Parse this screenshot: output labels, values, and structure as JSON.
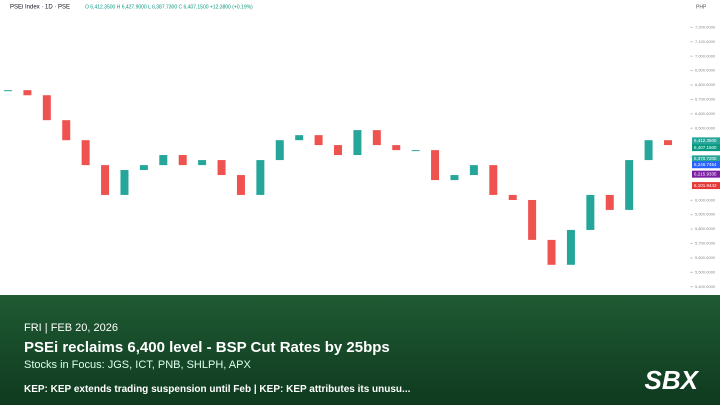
{
  "header": {
    "symbol": "PSEi Index · 1D · PSE",
    "ohlc": "O 6,412.3500  H 6,427.9000  L 6,387.7300  C 6,407.1500  +12.3800 (+0.19%)",
    "currency": "PHP"
  },
  "chart_data": {
    "type": "candlestick",
    "values": [
      6764,
      6729,
      6556,
      6417,
      6244,
      6037,
      6210,
      6244,
      6314,
      6244,
      6279,
      6175,
      6037,
      6279,
      6417,
      6452,
      6383,
      6314,
      6487,
      6383,
      6348,
      6348,
      6140,
      6175,
      6244,
      6037,
      6002,
      5725,
      5552,
      5794,
      6037,
      5933,
      6279,
      6417,
      6383
    ],
    "up_color": "#26a69a",
    "down_color": "#ef5350",
    "ylim": [
      5280,
      7390
    ],
    "yticks": [
      {
        "value": 7200,
        "label": "7,200.0000"
      },
      {
        "value": 7100,
        "label": "7,100.0000"
      },
      {
        "value": 7000,
        "label": "7,000.0000"
      },
      {
        "value": 6900,
        "label": "6,900.0000"
      },
      {
        "value": 6800,
        "label": "6,800.0000"
      },
      {
        "value": 6700,
        "label": "6,700.0000"
      },
      {
        "value": 6600,
        "label": "6,600.0000"
      },
      {
        "value": 6500,
        "label": "6,500.0000"
      },
      {
        "value": 6300,
        "label": "6,300.0000"
      },
      {
        "value": 6000,
        "label": "6,000.0000"
      },
      {
        "value": 5900,
        "label": "5,900.0000"
      },
      {
        "value": 5800,
        "label": "5,800.0000"
      },
      {
        "value": 5700,
        "label": "5,700.0000"
      },
      {
        "value": 5600,
        "label": "5,600.0000"
      },
      {
        "value": 5500,
        "label": "5,500.0000"
      },
      {
        "value": 5400,
        "label": "5,400.0000"
      }
    ],
    "price_tags": [
      {
        "value": 6412.35,
        "label": "6,412.3500",
        "color": "#26a69a"
      },
      {
        "value": 6407.15,
        "label": "6,407.1500",
        "color": "#089981"
      },
      {
        "value": 6370.72,
        "label": "6,370.7200",
        "color": "#26a69a"
      },
      {
        "value": 6246.7454,
        "label": "6,246.7454",
        "color": "#2962ff"
      },
      {
        "value": 6215.9335,
        "label": "6,215.9335",
        "color": "#7b1fa2"
      },
      {
        "value": 6101.9442,
        "label": "6,101.9442",
        "color": "#e53935"
      }
    ]
  },
  "overlay": {
    "date": "FRI | FEB 20, 2026",
    "headline": "PSEi reclaims 6,400 level - BSP Cut Rates by 25bps",
    "focus": "Stocks in Focus: JGS, ICT, PNB, SHLPH, APX",
    "ticker": "KEP: KEP extends trading suspension until Feb | KEP: KEP attributes its unusu...",
    "logo": "SBX"
  }
}
